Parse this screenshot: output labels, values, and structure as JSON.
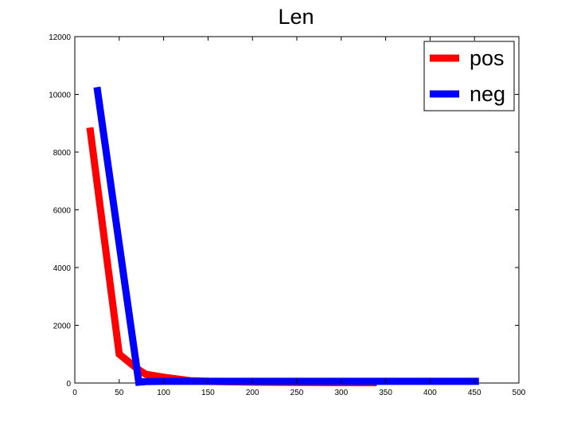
{
  "chart_data": {
    "type": "line",
    "title": "Len",
    "xlabel": "",
    "ylabel": "",
    "xlim": [
      0,
      500
    ],
    "ylim": [
      0,
      12000
    ],
    "xticks": [
      0,
      50,
      100,
      150,
      200,
      250,
      300,
      350,
      400,
      450,
      500
    ],
    "yticks": [
      0,
      2000,
      4000,
      6000,
      8000,
      10000,
      12000
    ],
    "grid": false,
    "legend": {
      "placement": "top-right"
    },
    "series": [
      {
        "name": "pos",
        "color": "#ff0000",
        "x": [
          17,
          50,
          70,
          80,
          100,
          130,
          160,
          200,
          250,
          300,
          340
        ],
        "y": [
          8850,
          1000,
          500,
          300,
          200,
          80,
          50,
          30,
          20,
          15,
          10
        ]
      },
      {
        "name": "neg",
        "color": "#0000ff",
        "x": [
          25,
          72,
          80,
          100,
          150,
          200,
          250,
          300,
          350,
          400,
          455
        ],
        "y": [
          10250,
          30,
          50,
          60,
          60,
          60,
          60,
          60,
          60,
          60,
          60
        ]
      }
    ]
  }
}
